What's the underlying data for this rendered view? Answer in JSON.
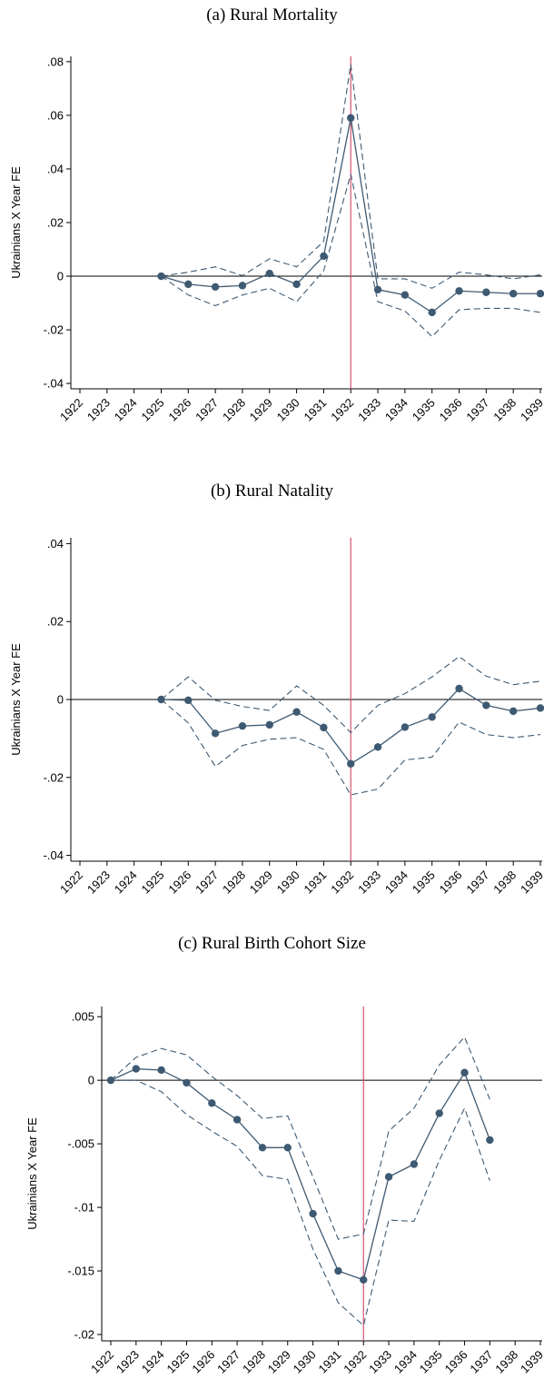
{
  "chart_data": [
    {
      "type": "line",
      "title": "(a) Rural Mortality",
      "ylabel": "Ukrainians X Year FE",
      "xlabel": "",
      "x_categories": [
        "1922",
        "1923",
        "1924",
        "1925",
        "1926",
        "1927",
        "1928",
        "1929",
        "1930",
        "1931",
        "1932",
        "1933",
        "1934",
        "1935",
        "1936",
        "1937",
        "1938",
        "1939"
      ],
      "ylim": [
        -0.042,
        0.082
      ],
      "yticks": [
        -0.04,
        -0.02,
        0,
        0.02,
        0.04,
        0.06,
        0.08
      ],
      "ytick_labels": [
        "-.04",
        "-.02",
        "0",
        ".02",
        ".04",
        ".06",
        ".08"
      ],
      "vline_x": "1932",
      "hline_y": 0,
      "series": [
        {
          "role": "estimate",
          "x": [
            "1925",
            "1926",
            "1927",
            "1928",
            "1929",
            "1930",
            "1931",
            "1932",
            "1933",
            "1934",
            "1935",
            "1936",
            "1937",
            "1938",
            "1939"
          ],
          "values": [
            0,
            -0.003,
            -0.004,
            -0.0035,
            0.001,
            -0.003,
            0.0075,
            0.059,
            -0.005,
            -0.007,
            -0.0135,
            -0.0055,
            -0.006,
            -0.0065,
            -0.0065
          ]
        },
        {
          "role": "upper_ci",
          "x": [
            "1925",
            "1926",
            "1927",
            "1928",
            "1929",
            "1930",
            "1931",
            "1932",
            "1933",
            "1934",
            "1935",
            "1936",
            "1937",
            "1938",
            "1939"
          ],
          "values": [
            0,
            0.0015,
            0.0035,
            0.0002,
            0.0065,
            0.0035,
            0.013,
            0.079,
            -0.001,
            -0.001,
            -0.0045,
            0.0015,
            0.0005,
            -0.001,
            0.0005
          ]
        },
        {
          "role": "lower_ci",
          "x": [
            "1925",
            "1926",
            "1927",
            "1928",
            "1929",
            "1930",
            "1931",
            "1932",
            "1933",
            "1934",
            "1935",
            "1936",
            "1937",
            "1938",
            "1939"
          ],
          "values": [
            0,
            -0.007,
            -0.011,
            -0.007,
            -0.0045,
            -0.0095,
            0.002,
            0.038,
            -0.0095,
            -0.013,
            -0.0225,
            -0.0125,
            -0.012,
            -0.012,
            -0.0135
          ]
        }
      ]
    },
    {
      "type": "line",
      "title": "(b) Rural Natality",
      "ylabel": "Ukrainians X Year FE",
      "xlabel": "",
      "x_categories": [
        "1922",
        "1923",
        "1924",
        "1925",
        "1926",
        "1927",
        "1928",
        "1929",
        "1930",
        "1931",
        "1932",
        "1933",
        "1934",
        "1935",
        "1936",
        "1937",
        "1938",
        "1939"
      ],
      "ylim": [
        -0.0415,
        0.0415
      ],
      "yticks": [
        -0.04,
        -0.02,
        0,
        0.02,
        0.04
      ],
      "ytick_labels": [
        "-.04",
        "-.02",
        "0",
        ".02",
        ".04"
      ],
      "vline_x": "1932",
      "hline_y": 0,
      "series": [
        {
          "role": "estimate",
          "x": [
            "1925",
            "1926",
            "1927",
            "1928",
            "1929",
            "1930",
            "1931",
            "1932",
            "1933",
            "1934",
            "1935",
            "1936",
            "1937",
            "1938",
            "1939"
          ],
          "values": [
            0,
            -0.0002,
            -0.0087,
            -0.0068,
            -0.0065,
            -0.0032,
            -0.0072,
            -0.0165,
            -0.0122,
            -0.0071,
            -0.0045,
            0.0028,
            -0.0015,
            -0.003,
            -0.0022
          ]
        },
        {
          "role": "upper_ci",
          "x": [
            "1925",
            "1926",
            "1927",
            "1928",
            "1929",
            "1930",
            "1931",
            "1932",
            "1933",
            "1934",
            "1935",
            "1936",
            "1937",
            "1938",
            "1939"
          ],
          "values": [
            0,
            0.0058,
            -0.0002,
            -0.0018,
            -0.0028,
            0.0035,
            -0.0015,
            -0.0085,
            -0.0015,
            0.0015,
            0.0058,
            0.011,
            0.006,
            0.0038,
            0.0047
          ]
        },
        {
          "role": "lower_ci",
          "x": [
            "1925",
            "1926",
            "1927",
            "1928",
            "1929",
            "1930",
            "1931",
            "1932",
            "1933",
            "1934",
            "1935",
            "1936",
            "1937",
            "1938",
            "1939"
          ],
          "values": [
            0,
            -0.006,
            -0.0172,
            -0.0118,
            -0.0102,
            -0.0098,
            -0.0128,
            -0.0245,
            -0.023,
            -0.0155,
            -0.0148,
            -0.0058,
            -0.009,
            -0.0098,
            -0.009
          ]
        }
      ]
    },
    {
      "type": "line",
      "title": "(c) Rural Birth Cohort Size",
      "ylabel": "Ukrainians X Year FE",
      "xlabel": "",
      "x_categories": [
        "1922",
        "1923",
        "1924",
        "1925",
        "1926",
        "1927",
        "1928",
        "1929",
        "1930",
        "1931",
        "1932",
        "1933",
        "1934",
        "1935",
        "1936",
        "1937",
        "1938",
        "1939"
      ],
      "ylim": [
        -0.0205,
        0.0058
      ],
      "yticks": [
        -0.02,
        -0.015,
        -0.01,
        -0.005,
        0,
        0.005
      ],
      "ytick_labels": [
        "-.02",
        "-.015",
        "-.01",
        "-.005",
        "0",
        ".005"
      ],
      "vline_x": "1932",
      "hline_y": 0,
      "series": [
        {
          "role": "estimate",
          "x": [
            "1922",
            "1923",
            "1924",
            "1925",
            "1926",
            "1927",
            "1928",
            "1929",
            "1930",
            "1931",
            "1932",
            "1933",
            "1934",
            "1935",
            "1936",
            "1937"
          ],
          "values": [
            0,
            0.0009,
            0.0008,
            -0.0002,
            -0.0018,
            -0.0031,
            -0.0053,
            -0.0053,
            -0.0105,
            -0.015,
            -0.0157,
            -0.0076,
            -0.0066,
            -0.0026,
            0.0006,
            -0.0047
          ]
        },
        {
          "role": "upper_ci",
          "x": [
            "1922",
            "1923",
            "1924",
            "1925",
            "1926",
            "1927",
            "1928",
            "1929",
            "1930",
            "1931",
            "1932",
            "1933",
            "1934",
            "1935",
            "1936",
            "1937"
          ],
          "values": [
            0,
            0.0018,
            0.0025,
            0.002,
            0.0003,
            -0.0012,
            -0.003,
            -0.0028,
            -0.0076,
            -0.0125,
            -0.0121,
            -0.004,
            -0.0022,
            0.0012,
            0.0034,
            -0.0015
          ]
        },
        {
          "role": "lower_ci",
          "x": [
            "1922",
            "1923",
            "1924",
            "1925",
            "1926",
            "1927",
            "1928",
            "1929",
            "1930",
            "1931",
            "1932",
            "1933",
            "1934",
            "1935",
            "1936",
            "1937"
          ],
          "values": [
            0,
            0.0,
            -0.0009,
            -0.0027,
            -0.004,
            -0.0052,
            -0.0075,
            -0.0078,
            -0.0133,
            -0.0175,
            -0.0193,
            -0.011,
            -0.0111,
            -0.0063,
            -0.0022,
            -0.0079
          ]
        }
      ]
    }
  ],
  "colors": {
    "line": "#3e5a72",
    "vline": "#d6516f",
    "axis": "#000000"
  }
}
